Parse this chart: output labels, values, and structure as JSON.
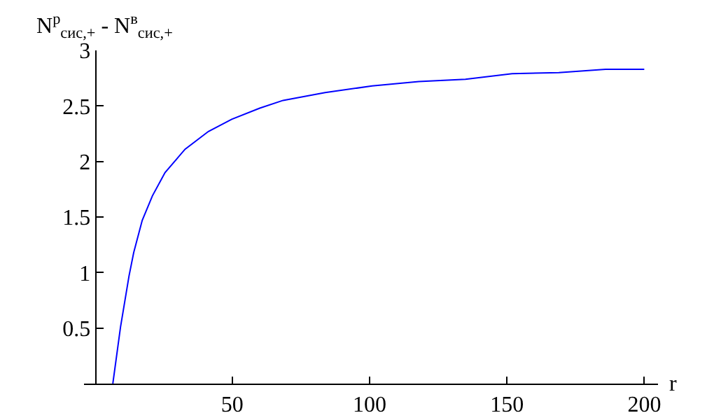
{
  "chart_data": {
    "type": "line",
    "xlabel": "r",
    "ylabel": "N$^{р}$$_{сис,+}$ - N$^{в}$$_{сис,+}$",
    "x": [
      6.5,
      9.3,
      12.4,
      14.1,
      17.2,
      20.9,
      25.5,
      32.8,
      41.3,
      49.8,
      60,
      68.5,
      83.8,
      100.9,
      117.9,
      134.9,
      151.9,
      168.9,
      185.9,
      200
    ],
    "series": [
      {
        "color": "#0000ff",
        "values": [
          0,
          0.51,
          0.97,
          1.18,
          1.47,
          1.69,
          1.9,
          2.11,
          2.27,
          2.38,
          2.48,
          2.55,
          2.62,
          2.68,
          2.72,
          2.74,
          2.79,
          2.8,
          2.83,
          2.83
        ]
      }
    ],
    "xlim": [
      -4,
      205
    ],
    "ylim": [
      0,
      3
    ],
    "xticks": [
      50,
      100,
      150,
      200
    ],
    "yticks": [
      0.5,
      1,
      1.5,
      2,
      2.5,
      3
    ],
    "grid": false,
    "marker": "none",
    "line_style": "solid"
  }
}
